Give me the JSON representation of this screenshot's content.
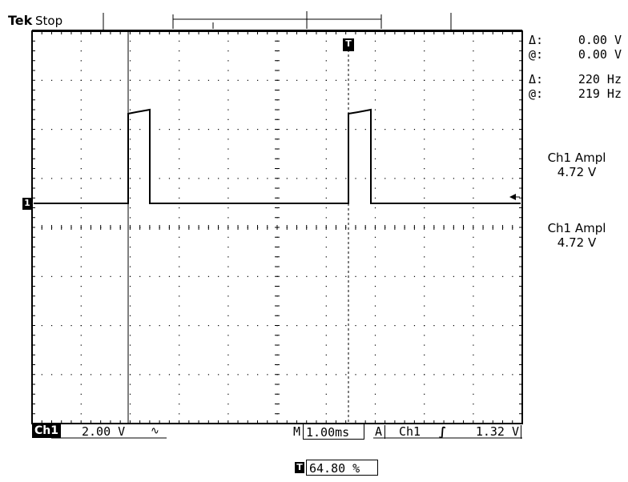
{
  "header": {
    "brand": "Tek",
    "status": "Stop"
  },
  "readouts": {
    "delta_symbol": "Δ:",
    "at_symbol": "@:",
    "cursor_voltage_delta": "0.00 V",
    "cursor_voltage_at": "0.00 V",
    "freq_delta": "220 Hz",
    "freq_at": "219 Hz"
  },
  "measurements": [
    {
      "label": "Ch1 Ampl",
      "value": "4.72 V"
    },
    {
      "label": "Ch1 Ampl",
      "value": "4.72 V"
    }
  ],
  "bottom_bar": {
    "channel_badge": "Ch1",
    "volts_per_div": "2.00 V",
    "bandwidth_symbol": "∿",
    "m_prefix": "M",
    "time_per_div": "1.00ms",
    "a_prefix": "A",
    "trigger_source": "Ch1",
    "trigger_slope": "∫",
    "trigger_level": "1.32 V"
  },
  "footer": {
    "trigger_position": "64.80 %"
  },
  "markers": {
    "trigger_marker": "T",
    "channel_marker": "1"
  },
  "colors": {
    "background": "#ffffff",
    "trace": "#000000",
    "graticule": "#000000"
  }
}
